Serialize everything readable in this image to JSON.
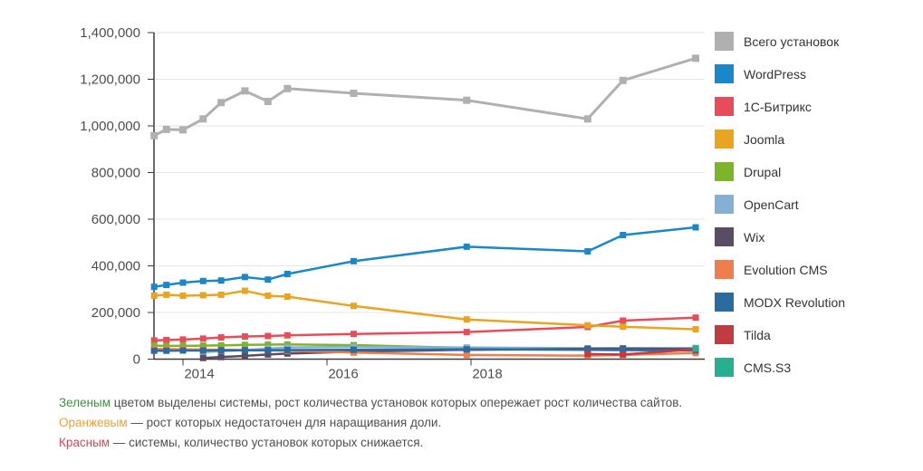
{
  "chart_data": {
    "type": "line",
    "title": "",
    "xlabel": "",
    "ylabel": "",
    "ylim": [
      0,
      1400000
    ],
    "ytick_step": 200000,
    "ytick_labels": [
      "1,400,000",
      "1,200,000",
      "1,000,000",
      "800,000",
      "600,000",
      "400,000",
      "200,000",
      "0"
    ],
    "ytick_values": [
      1400000,
      1200000,
      1000000,
      800000,
      600000,
      400000,
      200000,
      0
    ],
    "xtick_labels": [
      "2014",
      "2016",
      "2018"
    ],
    "xtick_years": [
      2014,
      2016,
      2018
    ],
    "grid": "horizontal-only",
    "legend_position": "right",
    "marker": "square",
    "x_years": [
      2013.6,
      2013.77,
      2014.0,
      2014.28,
      2014.53,
      2014.86,
      2015.18,
      2015.45,
      2016.37,
      2017.94,
      2019.62,
      2020.11,
      2021.12
    ],
    "series": [
      {
        "name": "Всего установок",
        "color": "#b0b0b0",
        "values": [
          958000,
          985000,
          983000,
          1030000,
          1100000,
          1150000,
          1105000,
          1160000,
          1140000,
          1110000,
          1030000,
          1195000,
          1290000
        ]
      },
      {
        "name": "WordPress",
        "color": "#1a87c8",
        "values": [
          310000,
          318000,
          328000,
          335000,
          337000,
          352000,
          341000,
          365000,
          420000,
          482000,
          462000,
          532000,
          565000
        ]
      },
      {
        "name": "1С-Битрикс",
        "color": "#e84c5b",
        "values": [
          80000,
          82000,
          84000,
          88000,
          93000,
          97000,
          99000,
          102000,
          108000,
          116000,
          138000,
          165000,
          178000
        ]
      },
      {
        "name": "Joomla",
        "color": "#e9a420",
        "values": [
          272000,
          276000,
          272000,
          274000,
          276000,
          293000,
          272000,
          268000,
          228000,
          170000,
          145000,
          139000,
          128000
        ]
      },
      {
        "name": "Drupal",
        "color": "#7cb52b",
        "values": [
          58000,
          57000,
          57000,
          58000,
          59000,
          61000,
          62000,
          63000,
          60000,
          48000,
          42000,
          40000,
          38000
        ]
      },
      {
        "name": "OpenCart",
        "color": "#85afd4",
        "values": [
          null,
          null,
          null,
          30000,
          34000,
          39000,
          45000,
          50000,
          52000,
          50000,
          47000,
          47000,
          48000
        ]
      },
      {
        "name": "Wix",
        "color": "#5a4d63",
        "values": [
          null,
          null,
          null,
          5000,
          9000,
          14000,
          20000,
          24000,
          32000,
          40000,
          44000,
          45000,
          43000
        ]
      },
      {
        "name": "Evolution CMS",
        "color": "#ee7e4d",
        "values": [
          44000,
          43000,
          42000,
          41000,
          40000,
          39000,
          38000,
          36000,
          28000,
          18000,
          15000,
          18000,
          26000
        ]
      },
      {
        "name": "MODX Revolution",
        "color": "#2b6c9f",
        "values": [
          36000,
          36000,
          37000,
          37000,
          38000,
          38000,
          38000,
          39000,
          40000,
          42000,
          40000,
          39000,
          37000
        ]
      },
      {
        "name": "Tilda",
        "color": "#c03c40",
        "values": [
          null,
          null,
          null,
          null,
          null,
          null,
          null,
          null,
          null,
          null,
          22000,
          20000,
          42000
        ]
      },
      {
        "name": "CMS.S3",
        "color": "#29ae92",
        "values": [
          null,
          null,
          null,
          null,
          null,
          null,
          null,
          null,
          null,
          null,
          null,
          null,
          46000
        ]
      }
    ]
  },
  "notes": [
    {
      "lead": "Зеленым",
      "lead_color": "#3f9142",
      "text": " цветом выделены системы, рост количества установок которых опережает рост количества сайтов."
    },
    {
      "lead": "Оранжевым",
      "lead_color": "#efa03c",
      "text": " — рост которых недостаточен для наращивания доли."
    },
    {
      "lead": "Красным",
      "lead_color": "#d04a5a",
      "text": " — системы, количество установок которых снижается."
    }
  ]
}
